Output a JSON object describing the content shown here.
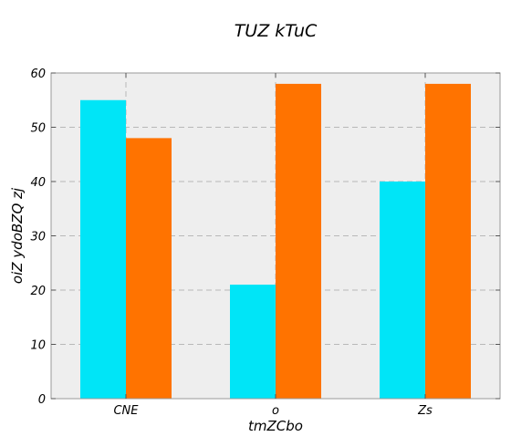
{
  "chart_data": {
    "type": "bar",
    "title": "TUZ kTuC",
    "xlabel": "tmZCbo",
    "ylabel": "oiZ ydoBZQ zj",
    "categories": [
      "CNE",
      "o",
      "Zs"
    ],
    "series": [
      {
        "values": [
          55,
          21,
          40
        ],
        "color": "#00e5f7"
      },
      {
        "values": [
          48,
          58,
          58
        ],
        "color": "#ff7300"
      }
    ],
    "ylim": [
      0,
      60
    ],
    "yticks": [
      0,
      10,
      20,
      30,
      40,
      50,
      60
    ],
    "grid": true,
    "background": "#eeeeee"
  }
}
